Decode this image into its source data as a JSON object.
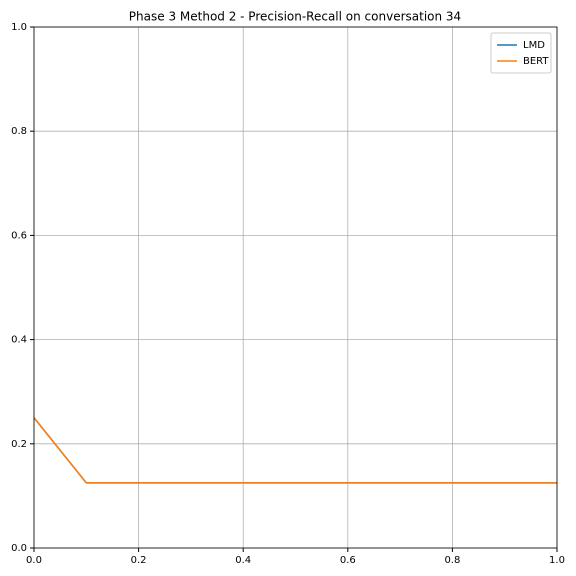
{
  "chart_data": {
    "type": "line",
    "title": "Phase 3 Method 2 - Precision-Recall on conversation 34",
    "x": [
      0,
      0.1,
      1
    ],
    "series": [
      {
        "name": "LMD",
        "color": "#1f77b4",
        "values": [
          0.25,
          0.125,
          0.125
        ]
      },
      {
        "name": "BERT",
        "color": "#ff7f0e",
        "values": [
          0.25,
          0.125,
          0.125
        ]
      }
    ],
    "xlim": [
      0,
      1
    ],
    "ylim": [
      0,
      1
    ],
    "xticks": [
      {
        "value": 0,
        "label": "0.0"
      },
      0.2,
      0.4,
      0.6,
      0.8,
      {
        "value": 1,
        "label": "1.0"
      }
    ],
    "yticks": [
      {
        "value": 0,
        "label": "0.0"
      },
      0.2,
      0.4,
      0.6,
      0.8,
      {
        "value": 1,
        "label": "1.0"
      }
    ],
    "grid": true,
    "legend": "upper right"
  }
}
